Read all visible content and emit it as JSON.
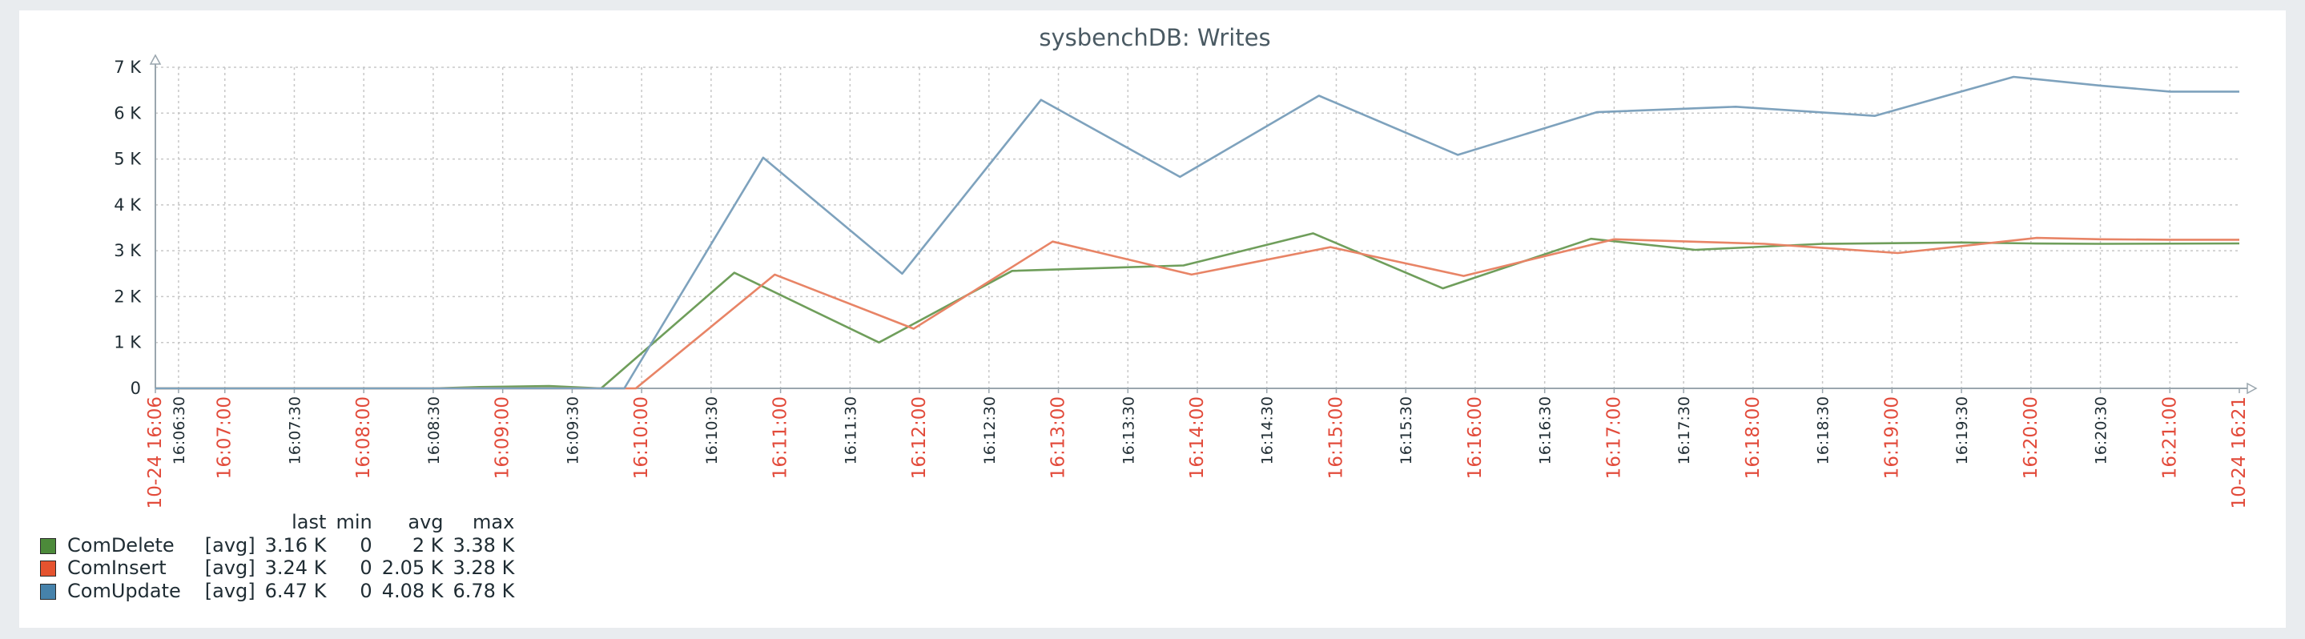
{
  "chart_data": {
    "type": "line",
    "title": "sysbenchDB: Writes",
    "ylim": [
      0,
      7000
    ],
    "y_ticks": [
      "0",
      "1 K",
      "2 K",
      "3 K",
      "4 K",
      "5 K",
      "6 K",
      "7 K"
    ],
    "time_range": [
      "10-24 16:06",
      "10-24 16:21"
    ],
    "x_labels": [
      {
        "t": 0,
        "label": "10-24 16:06",
        "highlight": true
      },
      {
        "t": 20,
        "label": "16:06:30",
        "highlight": false
      },
      {
        "t": 60,
        "label": "16:07:00",
        "highlight": true
      },
      {
        "t": 120,
        "label": "16:07:30",
        "highlight": false
      },
      {
        "t": 180,
        "label": "16:08:00",
        "highlight": true
      },
      {
        "t": 240,
        "label": "16:08:30",
        "highlight": false
      },
      {
        "t": 300,
        "label": "16:09:00",
        "highlight": true
      },
      {
        "t": 360,
        "label": "16:09:30",
        "highlight": false
      },
      {
        "t": 420,
        "label": "16:10:00",
        "highlight": true
      },
      {
        "t": 480,
        "label": "16:10:30",
        "highlight": false
      },
      {
        "t": 540,
        "label": "16:11:00",
        "highlight": true
      },
      {
        "t": 600,
        "label": "16:11:30",
        "highlight": false
      },
      {
        "t": 660,
        "label": "16:12:00",
        "highlight": true
      },
      {
        "t": 720,
        "label": "16:12:30",
        "highlight": false
      },
      {
        "t": 780,
        "label": "16:13:00",
        "highlight": true
      },
      {
        "t": 840,
        "label": "16:13:30",
        "highlight": false
      },
      {
        "t": 900,
        "label": "16:14:00",
        "highlight": true
      },
      {
        "t": 960,
        "label": "16:14:30",
        "highlight": false
      },
      {
        "t": 1020,
        "label": "16:15:00",
        "highlight": true
      },
      {
        "t": 1080,
        "label": "16:15:30",
        "highlight": false
      },
      {
        "t": 1140,
        "label": "16:16:00",
        "highlight": true
      },
      {
        "t": 1200,
        "label": "16:16:30",
        "highlight": false
      },
      {
        "t": 1260,
        "label": "16:17:00",
        "highlight": true
      },
      {
        "t": 1320,
        "label": "16:17:30",
        "highlight": false
      },
      {
        "t": 1380,
        "label": "16:18:00",
        "highlight": true
      },
      {
        "t": 1440,
        "label": "16:18:30",
        "highlight": false
      },
      {
        "t": 1500,
        "label": "16:19:00",
        "highlight": true
      },
      {
        "t": 1560,
        "label": "16:19:30",
        "highlight": false
      },
      {
        "t": 1620,
        "label": "16:20:00",
        "highlight": true
      },
      {
        "t": 1680,
        "label": "16:20:30",
        "highlight": false
      },
      {
        "t": 1740,
        "label": "16:21:00",
        "highlight": true
      },
      {
        "t": 1800,
        "label": "10-24 16:21",
        "highlight": true
      }
    ],
    "series": [
      {
        "name": "ComDelete",
        "color": "#6f9e5b",
        "swatch": "#4c8a3a",
        "x": [
          0,
          60,
          120,
          180,
          240,
          280,
          340,
          385,
          500,
          625,
          740,
          888,
          1000,
          1112,
          1240,
          1330,
          1440,
          1560,
          1620,
          1680,
          1800
        ],
        "values": [
          0,
          0,
          0,
          0,
          0,
          30,
          50,
          0,
          2520,
          1000,
          2560,
          2680,
          3380,
          2180,
          3260,
          3020,
          3150,
          3180,
          3160,
          3150,
          3160
        ]
      },
      {
        "name": "ComInsert",
        "color": "#e88466",
        "swatch": "#e5532f",
        "x": [
          0,
          60,
          120,
          180,
          240,
          300,
          340,
          415,
          535,
          655,
          775,
          895,
          1015,
          1130,
          1260,
          1390,
          1505,
          1625,
          1680,
          1740,
          1800
        ],
        "values": [
          0,
          0,
          0,
          0,
          0,
          0,
          0,
          0,
          2480,
          1300,
          3200,
          2480,
          3080,
          2450,
          3250,
          3150,
          2950,
          3280,
          3250,
          3240,
          3240
        ]
      },
      {
        "name": "ComUpdate",
        "color": "#7ea2bd",
        "swatch": "#4682ab",
        "x": [
          0,
          60,
          120,
          180,
          240,
          300,
          340,
          405,
          525,
          645,
          765,
          885,
          1005,
          1125,
          1245,
          1365,
          1485,
          1605,
          1680,
          1740,
          1800
        ],
        "values": [
          0,
          0,
          0,
          0,
          0,
          0,
          0,
          0,
          5030,
          2500,
          6290,
          4610,
          6380,
          5090,
          6020,
          6140,
          5940,
          6790,
          6600,
          6470,
          6470
        ]
      }
    ]
  },
  "legend": {
    "headers": {
      "last": "last",
      "min": "min",
      "avg": "avg",
      "max": "max"
    },
    "rows": [
      {
        "name": "ComDelete",
        "func": "[avg]",
        "last": "3.16 K",
        "min": "0",
        "avg": "2 K",
        "max": "3.38 K",
        "swatch": "#4c8a3a"
      },
      {
        "name": "ComInsert",
        "func": "[avg]",
        "last": "3.24 K",
        "min": "0",
        "avg": "2.05 K",
        "max": "3.28 K",
        "swatch": "#e5532f"
      },
      {
        "name": "ComUpdate",
        "func": "[avg]",
        "last": "6.47 K",
        "min": "0",
        "avg": "4.08 K",
        "max": "6.78 K",
        "swatch": "#4682ab"
      }
    ]
  }
}
